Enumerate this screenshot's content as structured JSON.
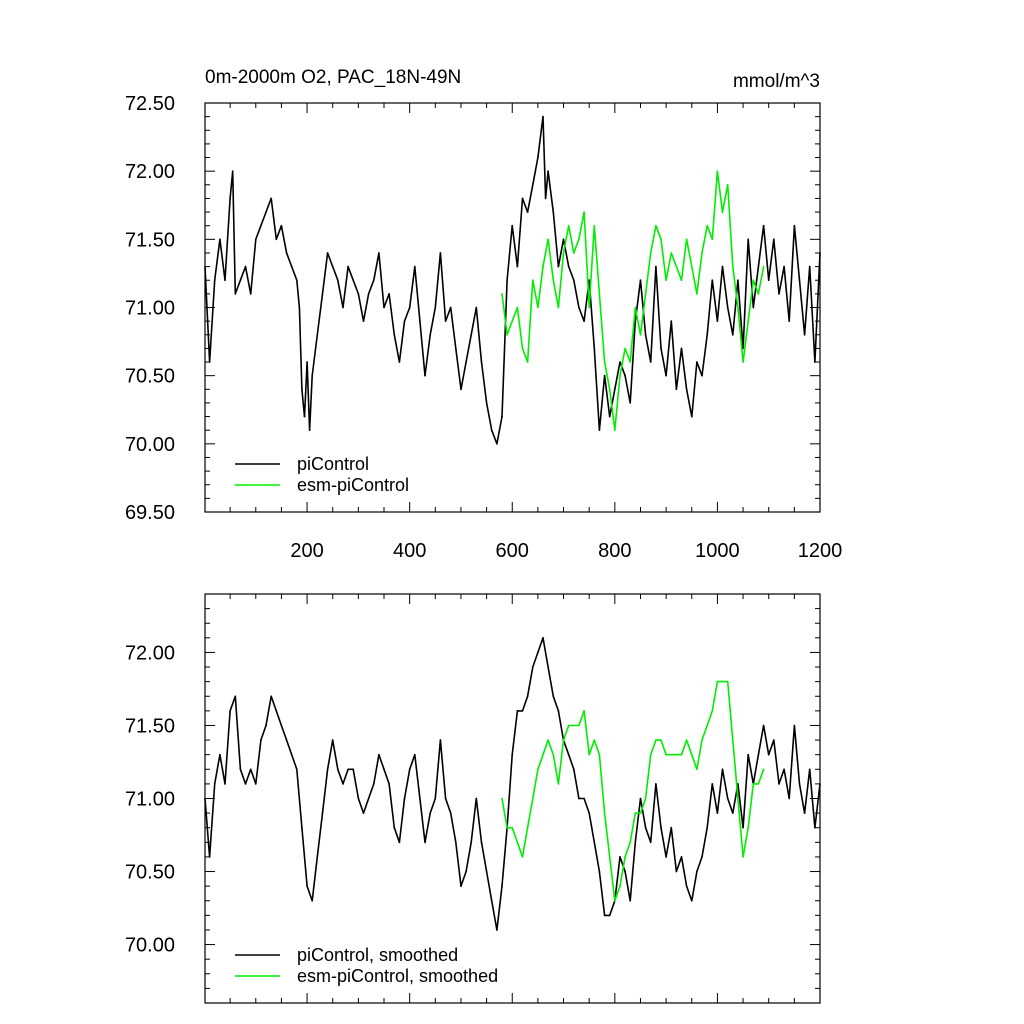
{
  "figure": {
    "title_left": "0m-2000m O2, PAC_18N-49N",
    "title_right": "mmol/m^3"
  },
  "colors": {
    "piControl": "#000000",
    "esm_piControl": "#00ee00"
  },
  "chart_data": [
    {
      "type": "line",
      "panel": "top",
      "title": "0m-2000m O2, PAC_18N-49N",
      "units": "mmol/m^3",
      "xlim": [
        1,
        1200
      ],
      "ylim": [
        69.5,
        72.5
      ],
      "xticks": [
        200,
        400,
        600,
        800,
        1000,
        1200
      ],
      "xtick_labels": [
        "200",
        "400",
        "600",
        "800",
        "1000",
        "1200"
      ],
      "yticks": [
        69.5,
        70.0,
        70.5,
        71.0,
        71.5,
        72.0,
        72.5
      ],
      "ytick_labels": [
        "69.50",
        "70.00",
        "70.50",
        "71.00",
        "71.50",
        "72.00",
        "72.50"
      ],
      "legend_position": "bottom-left",
      "legend": [
        "piControl",
        "esm-piControl"
      ],
      "series": [
        {
          "name": "piControl",
          "color": "#000000",
          "x": [
            1,
            10,
            20,
            30,
            40,
            50,
            55,
            60,
            70,
            80,
            90,
            100,
            110,
            120,
            130,
            140,
            150,
            160,
            170,
            180,
            185,
            190,
            195,
            200,
            205,
            210,
            220,
            230,
            240,
            250,
            260,
            270,
            280,
            290,
            300,
            310,
            320,
            330,
            340,
            350,
            360,
            370,
            380,
            390,
            400,
            410,
            420,
            430,
            440,
            450,
            460,
            470,
            480,
            490,
            500,
            510,
            520,
            530,
            540,
            550,
            560,
            570,
            580,
            590,
            600,
            610,
            620,
            630,
            640,
            650,
            660,
            665,
            670,
            680,
            690,
            700,
            710,
            720,
            730,
            740,
            750,
            760,
            770,
            780,
            790,
            800,
            810,
            820,
            830,
            840,
            850,
            860,
            870,
            880,
            890,
            900,
            910,
            920,
            930,
            940,
            950,
            960,
            970,
            980,
            990,
            1000,
            1010,
            1020,
            1030,
            1040,
            1050,
            1060,
            1070,
            1080,
            1090,
            1100,
            1110,
            1120,
            1130,
            1140,
            1150,
            1160,
            1170,
            1180,
            1190,
            1200
          ],
          "values": [
            71.3,
            70.6,
            71.2,
            71.5,
            71.2,
            71.8,
            72.0,
            71.1,
            71.2,
            71.3,
            71.1,
            71.5,
            71.6,
            71.7,
            71.8,
            71.5,
            71.6,
            71.4,
            71.3,
            71.2,
            71.0,
            70.4,
            70.2,
            70.6,
            70.1,
            70.5,
            70.8,
            71.1,
            71.4,
            71.3,
            71.2,
            71.0,
            71.3,
            71.2,
            71.1,
            70.9,
            71.1,
            71.2,
            71.4,
            71.0,
            71.1,
            70.8,
            70.6,
            70.9,
            71.0,
            71.3,
            70.9,
            70.5,
            70.8,
            71.0,
            71.4,
            70.9,
            71.0,
            70.7,
            70.4,
            70.6,
            70.8,
            71.0,
            70.6,
            70.3,
            70.1,
            70.0,
            70.2,
            71.2,
            71.6,
            71.3,
            71.8,
            71.7,
            71.9,
            72.1,
            72.4,
            71.8,
            72.0,
            71.7,
            71.3,
            71.5,
            71.3,
            71.2,
            71.0,
            70.9,
            71.2,
            70.7,
            70.1,
            70.5,
            70.2,
            70.4,
            70.6,
            70.5,
            70.3,
            70.9,
            71.2,
            70.8,
            70.6,
            71.3,
            70.7,
            70.5,
            70.9,
            70.4,
            70.7,
            70.4,
            70.2,
            70.6,
            70.5,
            70.8,
            71.2,
            70.9,
            71.3,
            71.0,
            70.8,
            71.2,
            70.7,
            71.5,
            71.0,
            71.3,
            71.6,
            71.2,
            71.5,
            71.1,
            71.3,
            70.9,
            71.6,
            71.2,
            70.8,
            71.3,
            70.6,
            71.4
          ]
        },
        {
          "name": "esm-piControl",
          "color": "#00ee00",
          "x": [
            580,
            590,
            600,
            610,
            620,
            630,
            640,
            650,
            660,
            670,
            680,
            690,
            700,
            710,
            720,
            730,
            740,
            750,
            760,
            770,
            780,
            790,
            800,
            810,
            820,
            830,
            840,
            850,
            860,
            870,
            880,
            890,
            900,
            910,
            920,
            930,
            940,
            950,
            960,
            970,
            980,
            990,
            1000,
            1010,
            1020,
            1030,
            1040,
            1050,
            1060,
            1070,
            1080,
            1090
          ],
          "values": [
            71.1,
            70.8,
            70.9,
            71.0,
            70.7,
            70.6,
            71.2,
            71.0,
            71.3,
            71.5,
            71.2,
            71.0,
            71.4,
            71.6,
            71.4,
            71.5,
            71.7,
            71.0,
            71.6,
            71.1,
            70.6,
            70.4,
            70.1,
            70.5,
            70.7,
            70.6,
            71.0,
            70.8,
            71.1,
            71.4,
            71.6,
            71.5,
            71.2,
            71.4,
            71.3,
            71.2,
            71.5,
            71.3,
            71.1,
            71.4,
            71.6,
            71.5,
            72.0,
            71.7,
            71.9,
            71.3,
            71.0,
            70.6,
            70.9,
            71.2,
            71.1,
            71.3
          ]
        }
      ]
    },
    {
      "type": "line",
      "panel": "bottom",
      "xlim": [
        1,
        1200
      ],
      "ylim": [
        69.6,
        72.4
      ],
      "xticks": [
        200,
        400,
        600,
        800,
        1000,
        1200
      ],
      "yticks": [
        70.0,
        70.5,
        71.0,
        71.5,
        72.0
      ],
      "ytick_labels": [
        "70.00",
        "70.50",
        "71.00",
        "71.50",
        "72.00"
      ],
      "legend_position": "bottom-left",
      "legend": [
        "piControl, smoothed",
        "esm-piControl, smoothed"
      ],
      "series": [
        {
          "name": "piControl, smoothed",
          "color": "#000000",
          "x": [
            1,
            10,
            20,
            30,
            40,
            50,
            60,
            70,
            80,
            90,
            100,
            110,
            120,
            130,
            140,
            150,
            160,
            170,
            180,
            190,
            200,
            210,
            220,
            230,
            240,
            250,
            260,
            270,
            280,
            290,
            300,
            310,
            320,
            330,
            340,
            350,
            360,
            370,
            380,
            390,
            400,
            410,
            420,
            430,
            440,
            450,
            460,
            470,
            480,
            490,
            500,
            510,
            520,
            530,
            540,
            550,
            560,
            570,
            580,
            590,
            600,
            610,
            620,
            630,
            640,
            650,
            660,
            670,
            680,
            690,
            700,
            710,
            720,
            730,
            740,
            750,
            760,
            770,
            780,
            790,
            800,
            810,
            820,
            830,
            840,
            850,
            860,
            870,
            880,
            890,
            900,
            910,
            920,
            930,
            940,
            950,
            960,
            970,
            980,
            990,
            1000,
            1010,
            1020,
            1030,
            1040,
            1050,
            1060,
            1070,
            1080,
            1090,
            1100,
            1110,
            1120,
            1130,
            1140,
            1150,
            1160,
            1170,
            1180,
            1190,
            1200
          ],
          "values": [
            71.0,
            70.6,
            71.1,
            71.3,
            71.1,
            71.6,
            71.7,
            71.2,
            71.1,
            71.2,
            71.1,
            71.4,
            71.5,
            71.7,
            71.6,
            71.5,
            71.4,
            71.3,
            71.2,
            70.8,
            70.4,
            70.3,
            70.6,
            70.9,
            71.2,
            71.4,
            71.2,
            71.1,
            71.2,
            71.2,
            71.0,
            70.9,
            71.0,
            71.1,
            71.3,
            71.2,
            71.1,
            70.8,
            70.7,
            71.0,
            71.2,
            71.3,
            71.0,
            70.7,
            70.9,
            71.0,
            71.4,
            71.0,
            70.9,
            70.7,
            70.4,
            70.5,
            70.7,
            71.0,
            70.7,
            70.5,
            70.3,
            70.1,
            70.4,
            70.8,
            71.3,
            71.6,
            71.6,
            71.7,
            71.9,
            72.0,
            72.1,
            71.9,
            71.7,
            71.6,
            71.4,
            71.3,
            71.2,
            71.0,
            71.0,
            70.9,
            70.7,
            70.5,
            70.2,
            70.2,
            70.3,
            70.6,
            70.5,
            70.3,
            70.7,
            71.0,
            70.8,
            70.7,
            71.1,
            70.8,
            70.6,
            70.8,
            70.5,
            70.6,
            70.4,
            70.3,
            70.5,
            70.6,
            70.8,
            71.1,
            70.9,
            71.2,
            71.0,
            70.9,
            71.1,
            70.8,
            71.3,
            71.1,
            71.3,
            71.5,
            71.3,
            71.4,
            71.1,
            71.2,
            71.0,
            71.5,
            71.1,
            70.9,
            71.2,
            70.8,
            71.1
          ]
        },
        {
          "name": "esm-piControl, smoothed",
          "color": "#00ee00",
          "x": [
            580,
            590,
            600,
            610,
            620,
            630,
            640,
            650,
            660,
            670,
            680,
            690,
            700,
            710,
            720,
            730,
            740,
            750,
            760,
            770,
            780,
            790,
            800,
            810,
            820,
            830,
            840,
            850,
            860,
            870,
            880,
            890,
            900,
            910,
            920,
            930,
            940,
            950,
            960,
            970,
            980,
            990,
            1000,
            1010,
            1020,
            1030,
            1040,
            1050,
            1060,
            1070,
            1080,
            1090
          ],
          "values": [
            71.0,
            70.8,
            70.8,
            70.7,
            70.6,
            70.8,
            71.0,
            71.2,
            71.3,
            71.4,
            71.3,
            71.1,
            71.4,
            71.5,
            71.5,
            71.5,
            71.6,
            71.3,
            71.4,
            71.3,
            70.9,
            70.6,
            70.3,
            70.4,
            70.6,
            70.7,
            70.9,
            70.9,
            71.0,
            71.3,
            71.4,
            71.4,
            71.3,
            71.3,
            71.3,
            71.3,
            71.4,
            71.3,
            71.2,
            71.4,
            71.5,
            71.6,
            71.8,
            71.8,
            71.8,
            71.4,
            71.0,
            70.6,
            70.8,
            71.1,
            71.1,
            71.2
          ]
        }
      ]
    }
  ]
}
